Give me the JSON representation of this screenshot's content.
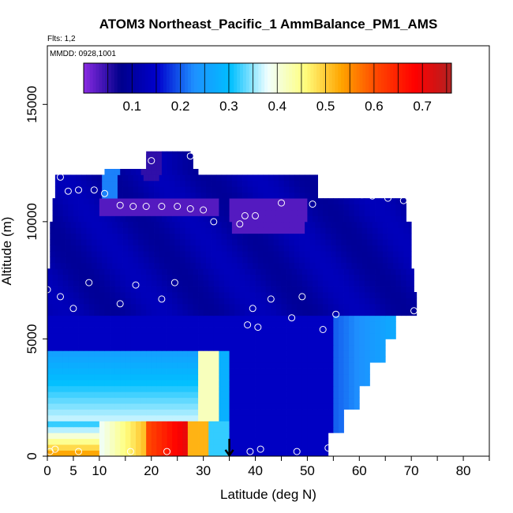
{
  "chart_data": {
    "type": "heatmap",
    "title": "ATOM3 Northeast_Pacific_1 AmmBalance_PM1_AMS",
    "annotations": [
      "Flts: 1,2",
      "MMDD: 0928,1001"
    ],
    "xlabel": "Latitude (deg N)",
    "ylabel": "Altitude (m)",
    "xlim": [
      0,
      85
    ],
    "ylim": [
      0,
      17500
    ],
    "x_ticks": [
      0,
      5,
      10,
      20,
      30,
      40,
      50,
      60,
      70,
      80
    ],
    "y_ticks": [
      0,
      5000,
      10000,
      15000
    ],
    "colorbar": {
      "range": [
        0.0,
        0.76
      ],
      "ticks": [
        0.1,
        0.2,
        0.3,
        0.4,
        0.5,
        0.6,
        0.7
      ],
      "colors": [
        "#8a2be2",
        "#00008b",
        "#0000cd",
        "#1e90ff",
        "#00bfff",
        "#f0ffff",
        "#ffff80",
        "#ffa500",
        "#ff4500",
        "#ff0000",
        "#b22222"
      ],
      "placement": "top-inside"
    },
    "arrow_marker_lat": 35,
    "observations": [
      {
        "lat": 0,
        "alt": 7100
      },
      {
        "lat": 2.5,
        "alt": 6800
      },
      {
        "lat": 5,
        "alt": 6300
      },
      {
        "lat": 8,
        "alt": 7400
      },
      {
        "lat": 14,
        "alt": 6500
      },
      {
        "lat": 17,
        "alt": 7300
      },
      {
        "lat": 22,
        "alt": 6700
      },
      {
        "lat": 24.5,
        "alt": 7400
      },
      {
        "lat": 2.5,
        "alt": 11900
      },
      {
        "lat": 4,
        "alt": 11300
      },
      {
        "lat": 6,
        "alt": 11350
      },
      {
        "lat": 9,
        "alt": 11350
      },
      {
        "lat": 11,
        "alt": 11200
      },
      {
        "lat": 11.5,
        "alt": 12400
      },
      {
        "lat": 14,
        "alt": 10700
      },
      {
        "lat": 16.5,
        "alt": 10650
      },
      {
        "lat": 19,
        "alt": 10650
      },
      {
        "lat": 20,
        "alt": 12600
      },
      {
        "lat": 22,
        "alt": 10650
      },
      {
        "lat": 25,
        "alt": 10650
      },
      {
        "lat": 27.5,
        "alt": 12800
      },
      {
        "lat": 27.5,
        "alt": 10550
      },
      {
        "lat": 29.5,
        "alt": 12450
      },
      {
        "lat": 30,
        "alt": 10500
      },
      {
        "lat": 32,
        "alt": 10000
      },
      {
        "lat": 37,
        "alt": 9900
      },
      {
        "lat": 38,
        "alt": 10250
      },
      {
        "lat": 40,
        "alt": 10250
      },
      {
        "lat": 45,
        "alt": 10800
      },
      {
        "lat": 51,
        "alt": 10750
      },
      {
        "lat": 58,
        "alt": 11250
      },
      {
        "lat": 60.5,
        "alt": 11150
      },
      {
        "lat": 62.5,
        "alt": 11100
      },
      {
        "lat": 65.5,
        "alt": 11000
      },
      {
        "lat": 68.5,
        "alt": 10900
      },
      {
        "lat": 39.5,
        "alt": 6300
      },
      {
        "lat": 43,
        "alt": 6700
      },
      {
        "lat": 49,
        "alt": 6800
      },
      {
        "lat": 38.5,
        "alt": 5600
      },
      {
        "lat": 40.5,
        "alt": 5500
      },
      {
        "lat": 47,
        "alt": 5900
      },
      {
        "lat": 53,
        "alt": 5400
      },
      {
        "lat": 55.5,
        "alt": 6050
      },
      {
        "lat": 70.5,
        "alt": 6200
      },
      {
        "lat": 0.5,
        "alt": 200
      },
      {
        "lat": 1.5,
        "alt": 300
      },
      {
        "lat": 6,
        "alt": 200
      },
      {
        "lat": 16,
        "alt": 200
      },
      {
        "lat": 23,
        "alt": 200
      },
      {
        "lat": 39,
        "alt": 200
      },
      {
        "lat": 41,
        "alt": 300
      },
      {
        "lat": 48,
        "alt": 200
      },
      {
        "lat": 54,
        "alt": 350
      }
    ]
  }
}
